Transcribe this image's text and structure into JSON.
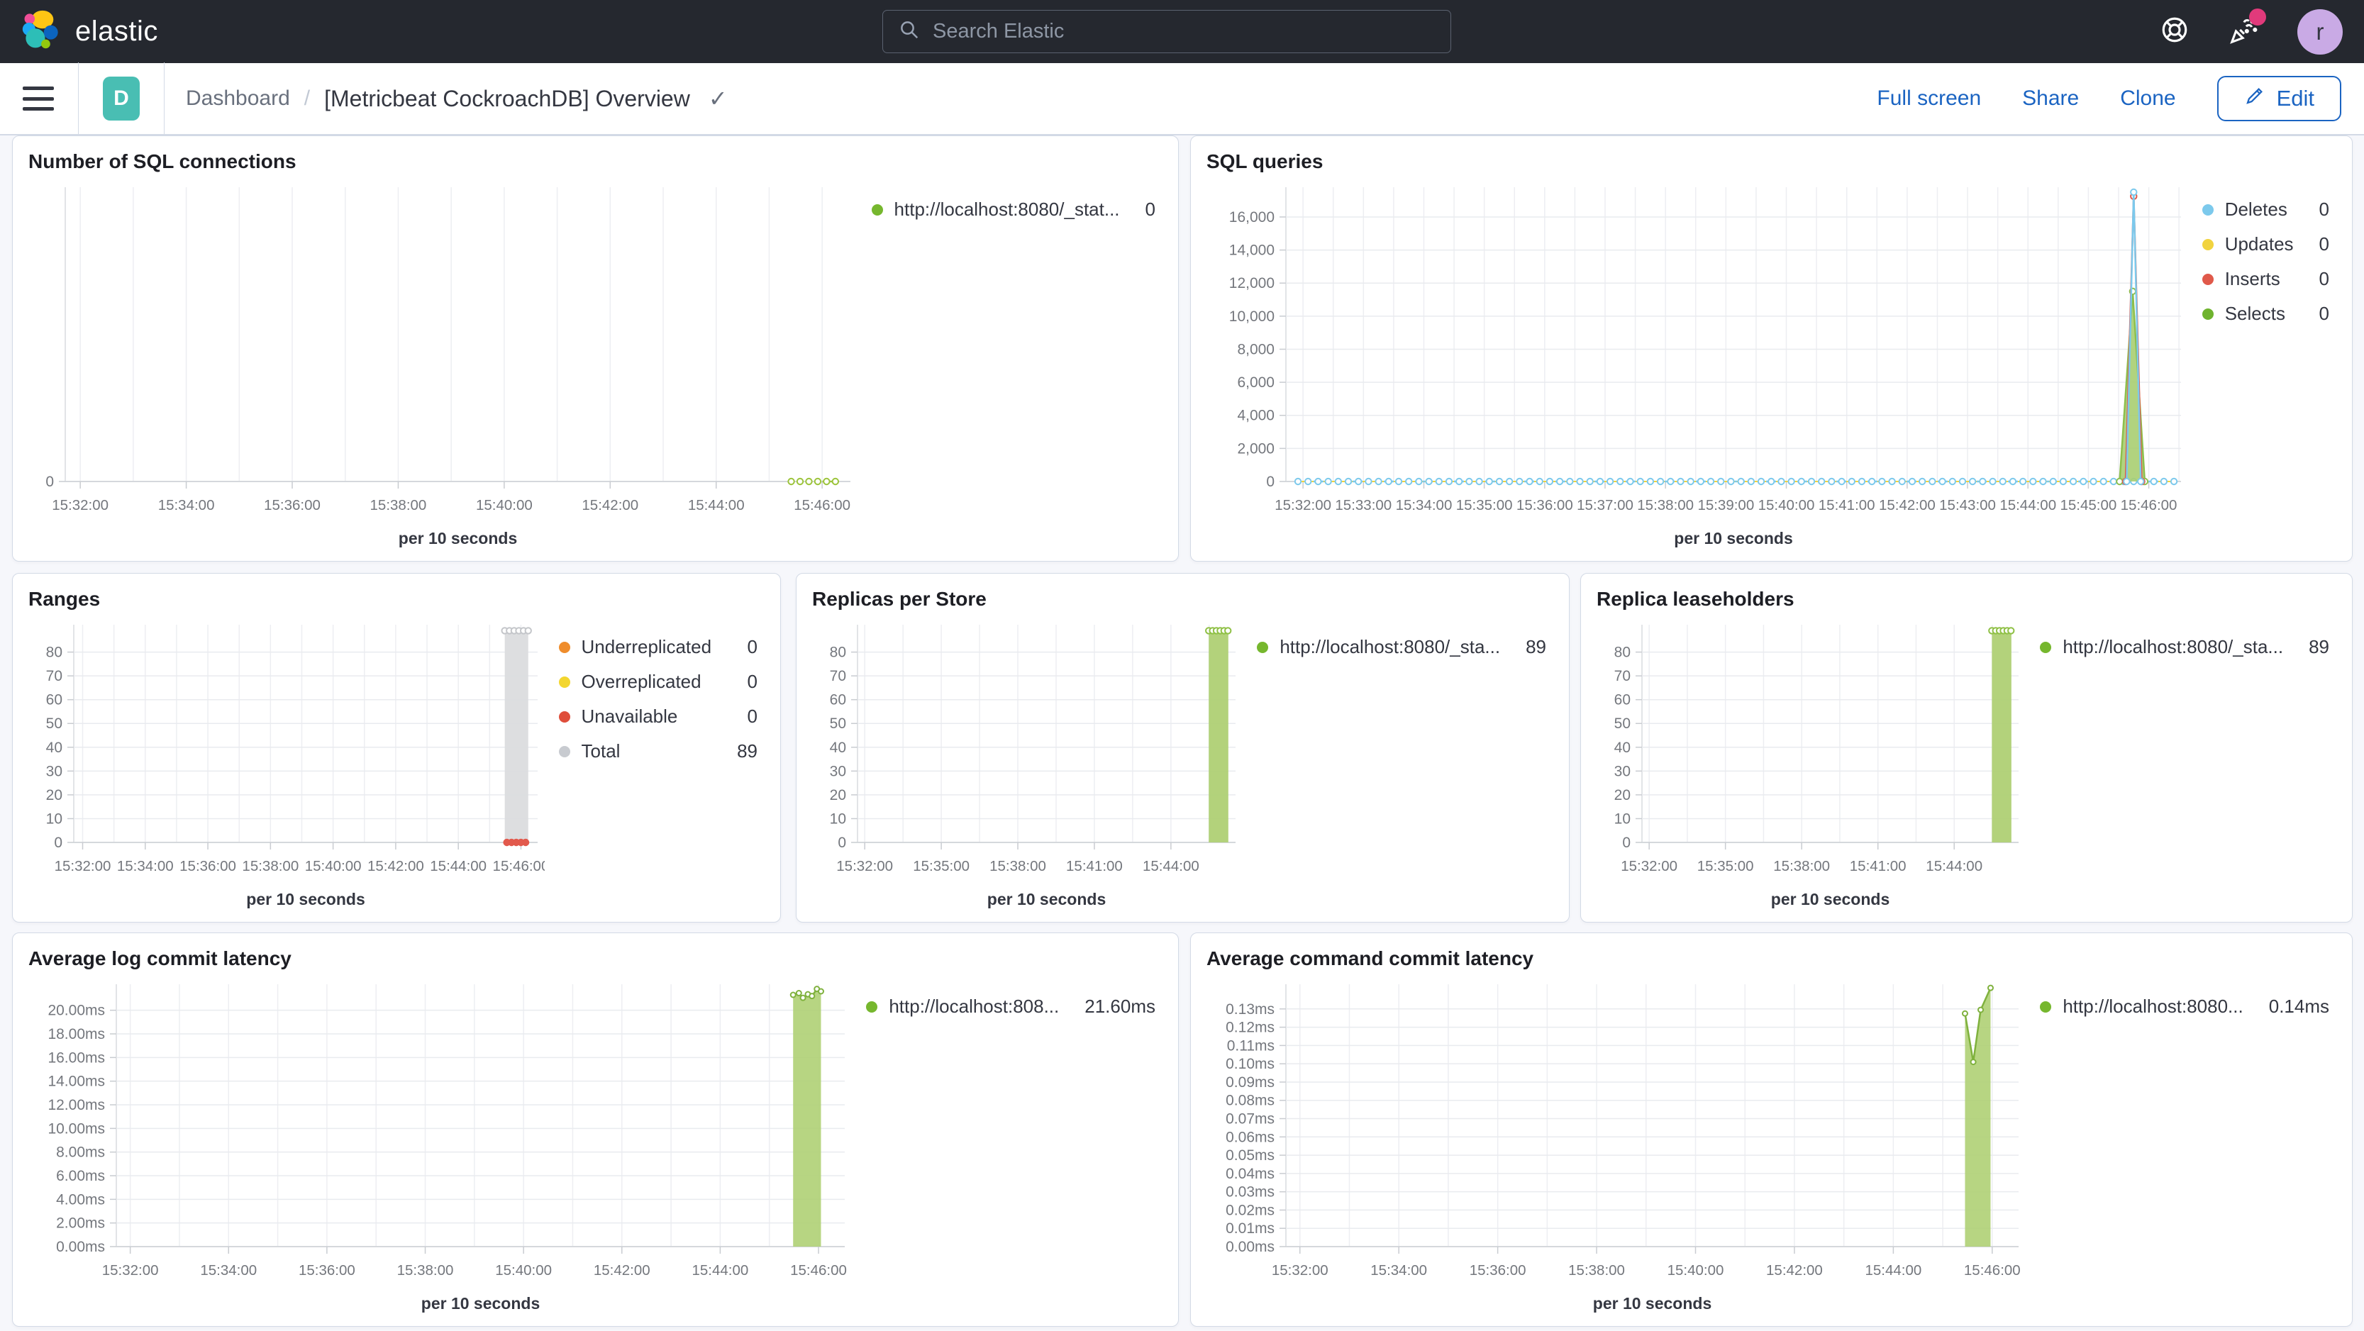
{
  "header": {
    "brand": "elastic",
    "search_placeholder": "Search Elastic",
    "avatar_initial": "r"
  },
  "toolbar": {
    "space_badge": "D",
    "breadcrumb_root": "Dashboard",
    "breadcrumb_sep": "/",
    "title": "[Metricbeat CockroachDB] Overview",
    "title_check": "✓",
    "actions": {
      "full_screen": "Full screen",
      "share": "Share",
      "clone": "Clone",
      "edit": "Edit"
    }
  },
  "colors": {
    "header_bg": "#25282F",
    "link_blue": "#1B64C2",
    "panel_border": "#D3DAE6",
    "green_series": "#8FC045",
    "green_fill": "#AFD074",
    "gray_series": "#C4C6CA",
    "red_series": "#E0594A",
    "blue_series": "#7CC9EC",
    "yellow_series": "#F1D33F",
    "orange_series": "#EF8D2C"
  },
  "chart_data": [
    {
      "type": "line",
      "title": "Number of SQL connections",
      "xlabel": "per 10 seconds",
      "x_domain": [
        55903,
        56792
      ],
      "y_max": 12,
      "y_ticks": [
        {
          "v": 0,
          "label": "0"
        }
      ],
      "x_ticks": [
        {
          "t": 55920,
          "label": "15:32:00"
        },
        {
          "t": 56040,
          "label": "15:34:00"
        },
        {
          "t": 56160,
          "label": "15:36:00"
        },
        {
          "t": 56280,
          "label": "15:38:00"
        },
        {
          "t": 56400,
          "label": "15:40:00"
        },
        {
          "t": 56520,
          "label": "15:42:00"
        },
        {
          "t": 56640,
          "label": "15:44:00"
        },
        {
          "t": 56760,
          "label": "15:46:00"
        }
      ],
      "legend": [
        {
          "label": "http://localhost:8080/_stat...",
          "value": "0",
          "color": "#76B72E"
        }
      ],
      "series": [
        {
          "kind": "dots",
          "y": 0,
          "from": 56725,
          "to": 56775,
          "step": 10,
          "color": "#9CC43B",
          "dash": true,
          "marker": "open"
        }
      ]
    },
    {
      "type": "line",
      "title": "SQL queries",
      "xlabel": "per 10 seconds",
      "x_domain": [
        55903,
        56792
      ],
      "y_max": 17800,
      "y_ticks": [
        {
          "v": 0,
          "label": "0"
        },
        {
          "v": 2000,
          "label": "2,000"
        },
        {
          "v": 4000,
          "label": "4,000"
        },
        {
          "v": 6000,
          "label": "6,000"
        },
        {
          "v": 8000,
          "label": "8,000"
        },
        {
          "v": 10000,
          "label": "10,000"
        },
        {
          "v": 12000,
          "label": "12,000"
        },
        {
          "v": 14000,
          "label": "14,000"
        },
        {
          "v": 16000,
          "label": "16,000"
        }
      ],
      "x_ticks": [
        {
          "t": 55920,
          "label": "15:32:00"
        },
        {
          "t": 55980,
          "label": "15:33:00"
        },
        {
          "t": 56040,
          "label": "15:34:00"
        },
        {
          "t": 56100,
          "label": "15:35:00"
        },
        {
          "t": 56160,
          "label": "15:36:00"
        },
        {
          "t": 56220,
          "label": "15:37:00"
        },
        {
          "t": 56280,
          "label": "15:38:00"
        },
        {
          "t": 56340,
          "label": "15:39:00"
        },
        {
          "t": 56400,
          "label": "15:40:00"
        },
        {
          "t": 56460,
          "label": "15:41:00"
        },
        {
          "t": 56520,
          "label": "15:42:00"
        },
        {
          "t": 56580,
          "label": "15:43:00"
        },
        {
          "t": 56640,
          "label": "15:44:00"
        },
        {
          "t": 56700,
          "label": "15:45:00"
        },
        {
          "t": 56760,
          "label": "15:46:00"
        }
      ],
      "legend": [
        {
          "label": "Deletes",
          "value": "0",
          "color": "#7CC9EC"
        },
        {
          "label": "Updates",
          "value": "0",
          "color": "#F1D33F"
        },
        {
          "label": "Inserts",
          "value": "0",
          "color": "#E0594A"
        },
        {
          "label": "Selects",
          "value": "0",
          "color": "#6FB32E"
        }
      ],
      "series": [
        {
          "kind": "line",
          "points": [
            [
              55915,
              0
            ],
            [
              56785,
              0
            ]
          ],
          "color": "#F1D33F",
          "width": 2
        },
        {
          "kind": "dots",
          "y": 0,
          "from": 55915,
          "to": 56785,
          "step": 10,
          "color": "#7CC9EC",
          "dash": true,
          "marker": "open"
        },
        {
          "kind": "area",
          "points": [
            [
              56731,
              0
            ],
            [
              56744,
              11500
            ],
            [
              56756,
              0
            ]
          ],
          "color": "#8CBF4D",
          "fill": "#A9CE71",
          "fill_opacity": 0.9,
          "marker": "open"
        },
        {
          "kind": "line",
          "points": [
            [
              56737,
              0
            ],
            [
              56745,
              17250
            ],
            [
              56753,
              0
            ]
          ],
          "color": "#E0594A",
          "marker": "open"
        },
        {
          "kind": "line",
          "points": [
            [
              56738,
              0
            ],
            [
              56745,
              17500
            ],
            [
              56752,
              0
            ]
          ],
          "color": "#7CC9EC",
          "marker": "open"
        }
      ]
    },
    {
      "type": "bar",
      "title": "Ranges",
      "xlabel": "per 10 seconds",
      "x_domain": [
        55903,
        56792
      ],
      "y_max": 91.5,
      "y_ticks": [
        {
          "v": 0,
          "label": "0"
        },
        {
          "v": 10,
          "label": "10"
        },
        {
          "v": 20,
          "label": "20"
        },
        {
          "v": 30,
          "label": "30"
        },
        {
          "v": 40,
          "label": "40"
        },
        {
          "v": 50,
          "label": "50"
        },
        {
          "v": 60,
          "label": "60"
        },
        {
          "v": 70,
          "label": "70"
        },
        {
          "v": 80,
          "label": "80"
        }
      ],
      "x_ticks": [
        {
          "t": 55920,
          "label": "15:32:00"
        },
        {
          "t": 56040,
          "label": "15:34:00"
        },
        {
          "t": 56160,
          "label": "15:36:00"
        },
        {
          "t": 56280,
          "label": "15:38:00"
        },
        {
          "t": 56400,
          "label": "15:40:00"
        },
        {
          "t": 56520,
          "label": "15:42:00"
        },
        {
          "t": 56640,
          "label": "15:44:00"
        },
        {
          "t": 56760,
          "label": "15:46:00"
        }
      ],
      "legend": [
        {
          "label": "Underreplicated",
          "value": "0",
          "color": "#EF8D2C"
        },
        {
          "label": "Overreplicated",
          "value": "0",
          "color": "#F3D62F"
        },
        {
          "label": "Unavailable",
          "value": "0",
          "color": "#DF4E3B"
        },
        {
          "label": "Total",
          "value": "89",
          "color": "#C8CBD0"
        }
      ],
      "series": [
        {
          "kind": "area",
          "points": [
            [
              56729,
              89
            ],
            [
              56774,
              89
            ]
          ],
          "fill": "#DBDCDE",
          "fill_opacity": 0.95
        },
        {
          "kind": "dots",
          "y": 89,
          "from": 56729,
          "to": 56774,
          "step": 9,
          "color": "#C4C6CA",
          "marker": "open"
        },
        {
          "kind": "dots",
          "y": 0,
          "from": 56733,
          "to": 56769,
          "step": 9,
          "color": "#E2594C",
          "marker": "solid"
        }
      ]
    },
    {
      "type": "bar",
      "title": "Replicas per Store",
      "xlabel": "per 10 seconds",
      "x_domain": [
        55903,
        56792
      ],
      "y_max": 91.5,
      "y_ticks": [
        {
          "v": 0,
          "label": "0"
        },
        {
          "v": 10,
          "label": "10"
        },
        {
          "v": 20,
          "label": "20"
        },
        {
          "v": 30,
          "label": "30"
        },
        {
          "v": 40,
          "label": "40"
        },
        {
          "v": 50,
          "label": "50"
        },
        {
          "v": 60,
          "label": "60"
        },
        {
          "v": 70,
          "label": "70"
        },
        {
          "v": 80,
          "label": "80"
        }
      ],
      "x_ticks": [
        {
          "t": 55920,
          "label": "15:32:00"
        },
        {
          "t": 56100,
          "label": "15:35:00"
        },
        {
          "t": 56280,
          "label": "15:38:00"
        },
        {
          "t": 56460,
          "label": "15:41:00"
        },
        {
          "t": 56640,
          "label": "15:44:00"
        }
      ],
      "legend": [
        {
          "label": "http://localhost:8080/_sta...",
          "value": "89",
          "color": "#76B72E"
        }
      ],
      "series": [
        {
          "kind": "area",
          "points": [
            [
              56729,
              89
            ],
            [
              56775,
              89
            ]
          ],
          "fill": "#AFD074",
          "fill_opacity": 0.95
        },
        {
          "kind": "dots",
          "y": 89,
          "from": 56729,
          "to": 56775,
          "step": 9,
          "color": "#8FC045",
          "marker": "open"
        }
      ]
    },
    {
      "type": "bar",
      "title": "Replica leaseholders",
      "xlabel": "per 10 seconds",
      "x_domain": [
        55903,
        56792
      ],
      "y_max": 91.5,
      "y_ticks": [
        {
          "v": 0,
          "label": "0"
        },
        {
          "v": 10,
          "label": "10"
        },
        {
          "v": 20,
          "label": "20"
        },
        {
          "v": 30,
          "label": "30"
        },
        {
          "v": 40,
          "label": "40"
        },
        {
          "v": 50,
          "label": "50"
        },
        {
          "v": 60,
          "label": "60"
        },
        {
          "v": 70,
          "label": "70"
        },
        {
          "v": 80,
          "label": "80"
        }
      ],
      "x_ticks": [
        {
          "t": 55920,
          "label": "15:32:00"
        },
        {
          "t": 56100,
          "label": "15:35:00"
        },
        {
          "t": 56280,
          "label": "15:38:00"
        },
        {
          "t": 56460,
          "label": "15:41:00"
        },
        {
          "t": 56640,
          "label": "15:44:00"
        }
      ],
      "legend": [
        {
          "label": "http://localhost:8080/_sta...",
          "value": "89",
          "color": "#76B72E"
        }
      ],
      "series": [
        {
          "kind": "area",
          "points": [
            [
              56729,
              89
            ],
            [
              56775,
              89
            ]
          ],
          "fill": "#AFD074",
          "fill_opacity": 0.95
        },
        {
          "kind": "dots",
          "y": 89,
          "from": 56729,
          "to": 56775,
          "step": 9,
          "color": "#8FC045",
          "marker": "open"
        }
      ]
    },
    {
      "type": "area",
      "title": "Average log commit latency",
      "xlabel": "per 10 seconds",
      "x_domain": [
        55903,
        56792
      ],
      "y_max": 22.2,
      "y_ticks": [
        {
          "v": 0,
          "label": "0.00ms"
        },
        {
          "v": 2,
          "label": "2.00ms"
        },
        {
          "v": 4,
          "label": "4.00ms"
        },
        {
          "v": 6,
          "label": "6.00ms"
        },
        {
          "v": 8,
          "label": "8.00ms"
        },
        {
          "v": 10,
          "label": "10.00ms"
        },
        {
          "v": 12,
          "label": "12.00ms"
        },
        {
          "v": 14,
          "label": "14.00ms"
        },
        {
          "v": 16,
          "label": "16.00ms"
        },
        {
          "v": 18,
          "label": "18.00ms"
        },
        {
          "v": 20,
          "label": "20.00ms"
        }
      ],
      "x_ticks": [
        {
          "t": 55920,
          "label": "15:32:00"
        },
        {
          "t": 56040,
          "label": "15:34:00"
        },
        {
          "t": 56160,
          "label": "15:36:00"
        },
        {
          "t": 56280,
          "label": "15:38:00"
        },
        {
          "t": 56400,
          "label": "15:40:00"
        },
        {
          "t": 56520,
          "label": "15:42:00"
        },
        {
          "t": 56640,
          "label": "15:44:00"
        },
        {
          "t": 56760,
          "label": "15:46:00"
        }
      ],
      "legend": [
        {
          "label": "http://localhost:808...",
          "value": "21.60ms",
          "color": "#76B72E"
        }
      ],
      "series": [
        {
          "kind": "area",
          "points": [
            [
              56729,
              21.3
            ],
            [
              56736,
              21.45
            ],
            [
              56741,
              21.05
            ],
            [
              56747,
              21.35
            ],
            [
              56752,
              21.2
            ],
            [
              56758,
              21.8
            ],
            [
              56763,
              21.6
            ]
          ],
          "color": "#7FB13D",
          "fill": "#AFD074",
          "fill_opacity": 0.9,
          "marker": "open",
          "marker_r": 3.5
        }
      ]
    },
    {
      "type": "area",
      "title": "Average command commit latency",
      "xlabel": "per 10 seconds",
      "x_domain": [
        55903,
        56792
      ],
      "y_max": 0.1435,
      "y_ticks": [
        {
          "v": 0,
          "label": "0.00ms"
        },
        {
          "v": 0.01,
          "label": "0.01ms"
        },
        {
          "v": 0.02,
          "label": "0.02ms"
        },
        {
          "v": 0.03,
          "label": "0.03ms"
        },
        {
          "v": 0.04,
          "label": "0.04ms"
        },
        {
          "v": 0.05,
          "label": "0.05ms"
        },
        {
          "v": 0.06,
          "label": "0.06ms"
        },
        {
          "v": 0.07,
          "label": "0.07ms"
        },
        {
          "v": 0.08,
          "label": "0.08ms"
        },
        {
          "v": 0.09,
          "label": "0.09ms"
        },
        {
          "v": 0.1,
          "label": "0.10ms"
        },
        {
          "v": 0.11,
          "label": "0.11ms"
        },
        {
          "v": 0.12,
          "label": "0.12ms"
        },
        {
          "v": 0.13,
          "label": "0.13ms"
        }
      ],
      "x_ticks": [
        {
          "t": 55920,
          "label": "15:32:00"
        },
        {
          "t": 56040,
          "label": "15:34:00"
        },
        {
          "t": 56160,
          "label": "15:36:00"
        },
        {
          "t": 56280,
          "label": "15:38:00"
        },
        {
          "t": 56400,
          "label": "15:40:00"
        },
        {
          "t": 56520,
          "label": "15:42:00"
        },
        {
          "t": 56640,
          "label": "15:44:00"
        },
        {
          "t": 56760,
          "label": "15:46:00"
        }
      ],
      "legend": [
        {
          "label": "http://localhost:8080...",
          "value": "0.14ms",
          "color": "#76B72E"
        }
      ],
      "series": [
        {
          "kind": "area",
          "points": [
            [
              56727,
              0.1275
            ],
            [
              56737,
              0.101
            ],
            [
              56746,
              0.1295
            ],
            [
              56758,
              0.1415
            ]
          ],
          "color": "#7FB13D",
          "fill": "#AFD074",
          "fill_opacity": 0.9,
          "marker": "open",
          "marker_r": 3.5
        }
      ]
    }
  ]
}
